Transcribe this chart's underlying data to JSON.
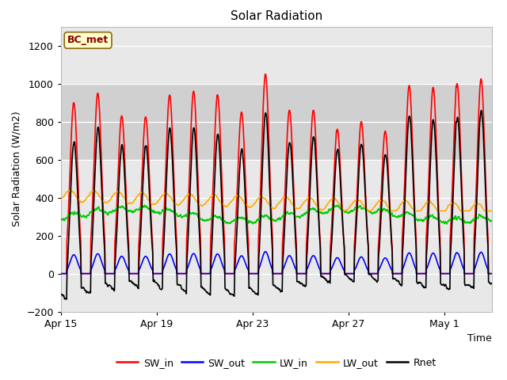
{
  "title": "Solar Radiation",
  "xlabel": "Time",
  "ylabel": "Solar Radiation (W/m2)",
  "ylim": [
    -200,
    1300
  ],
  "yticks": [
    -200,
    0,
    200,
    400,
    600,
    800,
    1000,
    1200
  ],
  "fig_bg_color": "#ffffff",
  "plot_bg_color": "#e8e8e8",
  "shaded_band": [
    600,
    1000
  ],
  "shaded_band_color": "#d0d0d0",
  "series": {
    "SW_in": {
      "color": "#ff0000",
      "lw": 1.2
    },
    "SW_out": {
      "color": "#0000ff",
      "lw": 1.2
    },
    "LW_in": {
      "color": "#00cc00",
      "lw": 1.2
    },
    "LW_out": {
      "color": "#ffaa00",
      "lw": 1.2
    },
    "Rnet": {
      "color": "#000000",
      "lw": 1.2
    }
  },
  "legend_labels": [
    "SW_in",
    "SW_out",
    "LW_in",
    "LW_out",
    "Rnet"
  ],
  "legend_colors": [
    "#ff0000",
    "#0000ff",
    "#00cc00",
    "#ffaa00",
    "#000000"
  ],
  "annotation_text": "BC_met",
  "annotation_color": "#8b0000",
  "annotation_bg": "#ffffcc",
  "annotation_border": "#8b6914",
  "start_day": 105,
  "n_days": 18,
  "dt_hours": 0.25,
  "xtick_days": [
    105,
    109,
    113,
    117,
    121
  ],
  "xtick_labels": [
    "Apr 15",
    "Apr 19",
    "Apr 23",
    "Apr 27",
    "May 1"
  ],
  "grid_color": "#ffffff",
  "grid_lw": 1.0
}
